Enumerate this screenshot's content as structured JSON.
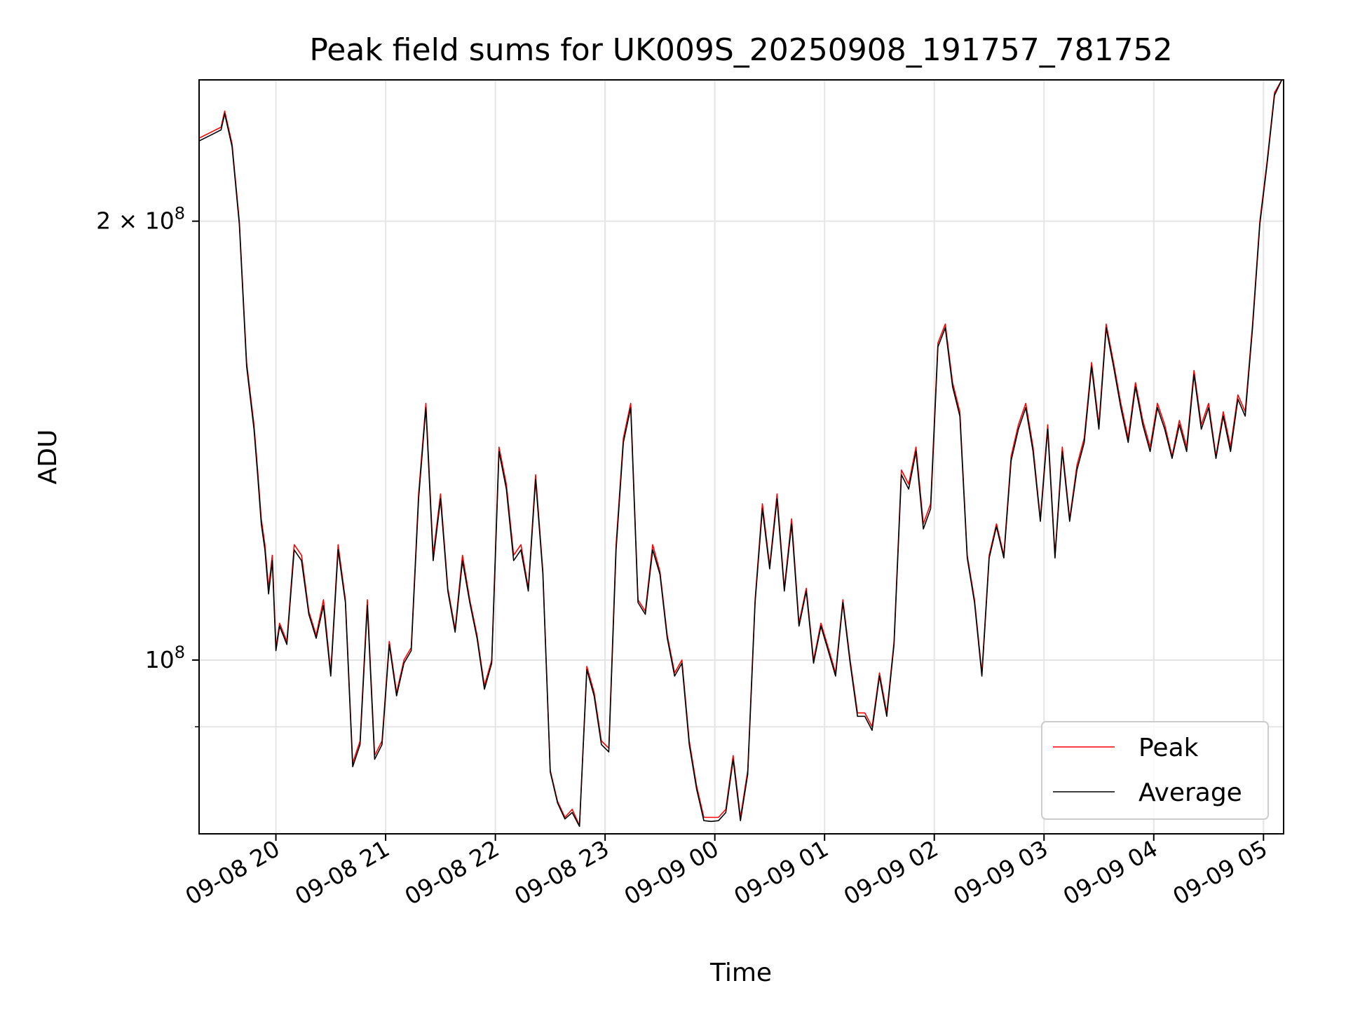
{
  "chart_data": {
    "type": "line",
    "title": "Peak field sums for UK009S_20250908_191757_781752",
    "xlabel": "Time",
    "ylabel": "ADU",
    "y_scale": "log",
    "ylim": [
      76000000,
      250000000
    ],
    "xlim": [
      "2025-09-08 19:18",
      "2025-09-09 05:11"
    ],
    "grid": true,
    "legend_position": "lower right",
    "x_ticks": [
      {
        "x": "2025-09-08 20:00",
        "label": "09-08 20"
      },
      {
        "x": "2025-09-08 21:00",
        "label": "09-08 21"
      },
      {
        "x": "2025-09-08 22:00",
        "label": "09-08 22"
      },
      {
        "x": "2025-09-08 23:00",
        "label": "09-08 23"
      },
      {
        "x": "2025-09-09 00:00",
        "label": "09-09 00"
      },
      {
        "x": "2025-09-09 01:00",
        "label": "09-09 01"
      },
      {
        "x": "2025-09-09 02:00",
        "label": "09-09 02"
      },
      {
        "x": "2025-09-09 03:00",
        "label": "09-09 03"
      },
      {
        "x": "2025-09-09 04:00",
        "label": "09-09 04"
      },
      {
        "x": "2025-09-09 05:00",
        "label": "09-09 05"
      }
    ],
    "y_ticks": [
      {
        "value": 100000000,
        "label_base": "10",
        "label_exp": "8",
        "major": true
      },
      {
        "value": 200000000,
        "label_base": "2 × 10",
        "label_exp": "8",
        "major": true
      },
      {
        "value": 90000000,
        "major": false
      }
    ],
    "series": [
      {
        "name": "Peak",
        "color": "#ff0000",
        "x": [
          "2025-09-08 19:18",
          "2025-09-08 19:24",
          "2025-09-08 19:30",
          "2025-09-08 19:32",
          "2025-09-08 19:34",
          "2025-09-08 19:36",
          "2025-09-08 19:40",
          "2025-09-08 19:44",
          "2025-09-08 19:48",
          "2025-09-08 19:50",
          "2025-09-08 19:52",
          "2025-09-08 19:54",
          "2025-09-08 19:56",
          "2025-09-08 19:58",
          "2025-09-08 20:00",
          "2025-09-08 20:02",
          "2025-09-08 20:06",
          "2025-09-08 20:10",
          "2025-09-08 20:14",
          "2025-09-08 20:18",
          "2025-09-08 20:22",
          "2025-09-08 20:26",
          "2025-09-08 20:30",
          "2025-09-08 20:34",
          "2025-09-08 20:38",
          "2025-09-08 20:42",
          "2025-09-08 20:46",
          "2025-09-08 20:50",
          "2025-09-08 20:54",
          "2025-09-08 20:58",
          "2025-09-08 21:02",
          "2025-09-08 21:06",
          "2025-09-08 21:10",
          "2025-09-08 21:14",
          "2025-09-08 21:18",
          "2025-09-08 21:22",
          "2025-09-08 21:26",
          "2025-09-08 21:30",
          "2025-09-08 21:34",
          "2025-09-08 21:38",
          "2025-09-08 21:42",
          "2025-09-08 21:46",
          "2025-09-08 21:50",
          "2025-09-08 21:54",
          "2025-09-08 21:58",
          "2025-09-08 22:02",
          "2025-09-08 22:06",
          "2025-09-08 22:10",
          "2025-09-08 22:14",
          "2025-09-08 22:18",
          "2025-09-08 22:22",
          "2025-09-08 22:26",
          "2025-09-08 22:30",
          "2025-09-08 22:34",
          "2025-09-08 22:38",
          "2025-09-08 22:42",
          "2025-09-08 22:46",
          "2025-09-08 22:50",
          "2025-09-08 22:54",
          "2025-09-08 22:58",
          "2025-09-08 23:02",
          "2025-09-08 23:06",
          "2025-09-08 23:10",
          "2025-09-08 23:14",
          "2025-09-08 23:18",
          "2025-09-08 23:22",
          "2025-09-08 23:26",
          "2025-09-08 23:30",
          "2025-09-08 23:34",
          "2025-09-08 23:38",
          "2025-09-08 23:42",
          "2025-09-08 23:46",
          "2025-09-08 23:50",
          "2025-09-08 23:54",
          "2025-09-08 23:58",
          "2025-09-09 00:02",
          "2025-09-09 00:06",
          "2025-09-09 00:10",
          "2025-09-09 00:14",
          "2025-09-09 00:18",
          "2025-09-09 00:22",
          "2025-09-09 00:26",
          "2025-09-09 00:30",
          "2025-09-09 00:34",
          "2025-09-09 00:38",
          "2025-09-09 00:42",
          "2025-09-09 00:46",
          "2025-09-09 00:50",
          "2025-09-09 00:54",
          "2025-09-09 00:58",
          "2025-09-09 01:02",
          "2025-09-09 01:06",
          "2025-09-09 01:10",
          "2025-09-09 01:14",
          "2025-09-09 01:18",
          "2025-09-09 01:22",
          "2025-09-09 01:26",
          "2025-09-09 01:30",
          "2025-09-09 01:34",
          "2025-09-09 01:38",
          "2025-09-09 01:42",
          "2025-09-09 01:46",
          "2025-09-09 01:50",
          "2025-09-09 01:54",
          "2025-09-09 01:58",
          "2025-09-09 02:02",
          "2025-09-09 02:06",
          "2025-09-09 02:10",
          "2025-09-09 02:14",
          "2025-09-09 02:18",
          "2025-09-09 02:22",
          "2025-09-09 02:26",
          "2025-09-09 02:30",
          "2025-09-09 02:34",
          "2025-09-09 02:38",
          "2025-09-09 02:42",
          "2025-09-09 02:46",
          "2025-09-09 02:50",
          "2025-09-09 02:54",
          "2025-09-09 02:58",
          "2025-09-09 03:02",
          "2025-09-09 03:06",
          "2025-09-09 03:10",
          "2025-09-09 03:14",
          "2025-09-09 03:18",
          "2025-09-09 03:22",
          "2025-09-09 03:26",
          "2025-09-09 03:30",
          "2025-09-09 03:34",
          "2025-09-09 03:38",
          "2025-09-09 03:42",
          "2025-09-09 03:46",
          "2025-09-09 03:50",
          "2025-09-09 03:54",
          "2025-09-09 03:58",
          "2025-09-09 04:02",
          "2025-09-09 04:06",
          "2025-09-09 04:10",
          "2025-09-09 04:14",
          "2025-09-09 04:18",
          "2025-09-09 04:22",
          "2025-09-09 04:26",
          "2025-09-09 04:30",
          "2025-09-09 04:34",
          "2025-09-09 04:38",
          "2025-09-09 04:42",
          "2025-09-09 04:46",
          "2025-09-09 04:50",
          "2025-09-09 04:54",
          "2025-09-09 04:58",
          "2025-09-09 05:02",
          "2025-09-09 05:06",
          "2025-09-09 05:10"
        ],
        "values": [
          228000000,
          230000000,
          232000000,
          238000000,
          232000000,
          226000000,
          200000000,
          160000000,
          145000000,
          135000000,
          125000000,
          120000000,
          112000000,
          118000000,
          102000000,
          106000000,
          103000000,
          120000000,
          118000000,
          108000000,
          104000000,
          110000000,
          98000000,
          120000000,
          110000000,
          85000000,
          88000000,
          110000000,
          86000000,
          88000000,
          103000000,
          95000000,
          100000000,
          102000000,
          130000000,
          150000000,
          118000000,
          130000000,
          112000000,
          105000000,
          118000000,
          110000000,
          104000000,
          96000000,
          100000000,
          140000000,
          132000000,
          118000000,
          120000000,
          112000000,
          134000000,
          115000000,
          84000000,
          80000000,
          78000000,
          79000000,
          77000000,
          99000000,
          95000000,
          88000000,
          87000000,
          120000000,
          142000000,
          150000000,
          110000000,
          108000000,
          120000000,
          115000000,
          104000000,
          98000000,
          100000000,
          88000000,
          82000000,
          78000000,
          78000000,
          78000000,
          79000000,
          86000000,
          78000000,
          84000000,
          110000000,
          128000000,
          116000000,
          130000000,
          112000000,
          125000000,
          106000000,
          112000000,
          100000000,
          106000000,
          102000000,
          98000000,
          110000000,
          100000000,
          92000000,
          92000000,
          90000000,
          98000000,
          92000000,
          103000000,
          135000000,
          132000000,
          140000000,
          124000000,
          128000000,
          165000000,
          170000000,
          155000000,
          148000000,
          118000000,
          110000000,
          98000000,
          118000000,
          124000000,
          118000000,
          138000000,
          145000000,
          150000000,
          140000000,
          125000000,
          145000000,
          118000000,
          140000000,
          125000000,
          136000000,
          142000000,
          160000000,
          145000000,
          170000000,
          160000000,
          150000000,
          142000000,
          155000000,
          146000000,
          140000000,
          150000000,
          145000000,
          138000000,
          146000000,
          140000000,
          158000000,
          145000000,
          150000000,
          138000000,
          148000000,
          140000000,
          152000000,
          148000000,
          170000000,
          200000000,
          220000000,
          245000000,
          250000000
        ]
      },
      {
        "name": "Average",
        "color": "#000000",
        "x": [
          "2025-09-08 19:18",
          "2025-09-08 19:24",
          "2025-09-08 19:30",
          "2025-09-08 19:32",
          "2025-09-08 19:34",
          "2025-09-08 19:36",
          "2025-09-08 19:40",
          "2025-09-08 19:44",
          "2025-09-08 19:48",
          "2025-09-08 19:50",
          "2025-09-08 19:52",
          "2025-09-08 19:54",
          "2025-09-08 19:56",
          "2025-09-08 19:58",
          "2025-09-08 20:00",
          "2025-09-08 20:02",
          "2025-09-08 20:06",
          "2025-09-08 20:10",
          "2025-09-08 20:14",
          "2025-09-08 20:18",
          "2025-09-08 20:22",
          "2025-09-08 20:26",
          "2025-09-08 20:30",
          "2025-09-08 20:34",
          "2025-09-08 20:38",
          "2025-09-08 20:42",
          "2025-09-08 20:46",
          "2025-09-08 20:50",
          "2025-09-08 20:54",
          "2025-09-08 20:58",
          "2025-09-08 21:02",
          "2025-09-08 21:06",
          "2025-09-08 21:10",
          "2025-09-08 21:14",
          "2025-09-08 21:18",
          "2025-09-08 21:22",
          "2025-09-08 21:26",
          "2025-09-08 21:30",
          "2025-09-08 21:34",
          "2025-09-08 21:38",
          "2025-09-08 21:42",
          "2025-09-08 21:46",
          "2025-09-08 21:50",
          "2025-09-08 21:54",
          "2025-09-08 21:58",
          "2025-09-08 22:02",
          "2025-09-08 22:06",
          "2025-09-08 22:10",
          "2025-09-08 22:14",
          "2025-09-08 22:18",
          "2025-09-08 22:22",
          "2025-09-08 22:26",
          "2025-09-08 22:30",
          "2025-09-08 22:34",
          "2025-09-08 22:38",
          "2025-09-08 22:42",
          "2025-09-08 22:46",
          "2025-09-08 22:50",
          "2025-09-08 22:54",
          "2025-09-08 22:58",
          "2025-09-08 23:02",
          "2025-09-08 23:06",
          "2025-09-08 23:10",
          "2025-09-08 23:14",
          "2025-09-08 23:18",
          "2025-09-08 23:22",
          "2025-09-08 23:26",
          "2025-09-08 23:30",
          "2025-09-08 23:34",
          "2025-09-08 23:38",
          "2025-09-08 23:42",
          "2025-09-08 23:46",
          "2025-09-08 23:50",
          "2025-09-08 23:54",
          "2025-09-08 23:58",
          "2025-09-09 00:02",
          "2025-09-09 00:06",
          "2025-09-09 00:10",
          "2025-09-09 00:14",
          "2025-09-09 00:18",
          "2025-09-09 00:22",
          "2025-09-09 00:26",
          "2025-09-09 00:30",
          "2025-09-09 00:34",
          "2025-09-09 00:38",
          "2025-09-09 00:42",
          "2025-09-09 00:46",
          "2025-09-09 00:50",
          "2025-09-09 00:54",
          "2025-09-09 00:58",
          "2025-09-09 01:02",
          "2025-09-09 01:06",
          "2025-09-09 01:10",
          "2025-09-09 01:14",
          "2025-09-09 01:18",
          "2025-09-09 01:22",
          "2025-09-09 01:26",
          "2025-09-09 01:30",
          "2025-09-09 01:34",
          "2025-09-09 01:38",
          "2025-09-09 01:42",
          "2025-09-09 01:46",
          "2025-09-09 01:50",
          "2025-09-09 01:54",
          "2025-09-09 01:58",
          "2025-09-09 02:02",
          "2025-09-09 02:06",
          "2025-09-09 02:10",
          "2025-09-09 02:14",
          "2025-09-09 02:18",
          "2025-09-09 02:22",
          "2025-09-09 02:26",
          "2025-09-09 02:30",
          "2025-09-09 02:34",
          "2025-09-09 02:38",
          "2025-09-09 02:42",
          "2025-09-09 02:46",
          "2025-09-09 02:50",
          "2025-09-09 02:54",
          "2025-09-09 02:58",
          "2025-09-09 03:02",
          "2025-09-09 03:06",
          "2025-09-09 03:10",
          "2025-09-09 03:14",
          "2025-09-09 03:18",
          "2025-09-09 03:22",
          "2025-09-09 03:26",
          "2025-09-09 03:30",
          "2025-09-09 03:34",
          "2025-09-09 03:38",
          "2025-09-09 03:42",
          "2025-09-09 03:46",
          "2025-09-09 03:50",
          "2025-09-09 03:54",
          "2025-09-09 03:58",
          "2025-09-09 04:02",
          "2025-09-09 04:06",
          "2025-09-09 04:10",
          "2025-09-09 04:14",
          "2025-09-09 04:18",
          "2025-09-09 04:22",
          "2025-09-09 04:26",
          "2025-09-09 04:30",
          "2025-09-09 04:34",
          "2025-09-09 04:38",
          "2025-09-09 04:42",
          "2025-09-09 04:46",
          "2025-09-09 04:50",
          "2025-09-09 04:54",
          "2025-09-09 04:58",
          "2025-09-09 05:02",
          "2025-09-09 05:06",
          "2025-09-09 05:10"
        ],
        "values": [
          227000000,
          229000000,
          231000000,
          237000000,
          231000000,
          225000000,
          199000000,
          159000000,
          144000000,
          134000000,
          124000000,
          119000000,
          111000000,
          117000000,
          101500000,
          105500000,
          102500000,
          119000000,
          117000000,
          107500000,
          103500000,
          109000000,
          97500000,
          119000000,
          109500000,
          84500000,
          87500000,
          109000000,
          85500000,
          87500000,
          102500000,
          94500000,
          99500000,
          101500000,
          129000000,
          149000000,
          117000000,
          129000000,
          111500000,
          104500000,
          117000000,
          109500000,
          103500000,
          95500000,
          99500000,
          139000000,
          131000000,
          117000000,
          119000000,
          111500000,
          133000000,
          114500000,
          83800000,
          79800000,
          77800000,
          78600000,
          76900000,
          98500000,
          94500000,
          87500000,
          86500000,
          119000000,
          141000000,
          149000000,
          109500000,
          107500000,
          119000000,
          114500000,
          103500000,
          97500000,
          99500000,
          87500000,
          81600000,
          77600000,
          77500000,
          77600000,
          78600000,
          85500000,
          77600000,
          83500000,
          109500000,
          127000000,
          115500000,
          129000000,
          111500000,
          124000000,
          105500000,
          111500000,
          99500000,
          105500000,
          101500000,
          97500000,
          109500000,
          99500000,
          91500000,
          91500000,
          89500000,
          97500000,
          91500000,
          102500000,
          134000000,
          131000000,
          139000000,
          123000000,
          127000000,
          164000000,
          169000000,
          154000000,
          147000000,
          117500000,
          109500000,
          97500000,
          117500000,
          123500000,
          117500000,
          137000000,
          144000000,
          149000000,
          139000000,
          124500000,
          144000000,
          117500000,
          139000000,
          124500000,
          135000000,
          141000000,
          159000000,
          144000000,
          169000000,
          159000000,
          149000000,
          141000000,
          154000000,
          145000000,
          139000000,
          149000000,
          144000000,
          137500000,
          145000000,
          139000000,
          157000000,
          144000000,
          149000000,
          137500000,
          147000000,
          139000000,
          151000000,
          147000000,
          169000000,
          199000000,
          219000000,
          244000000,
          250000000
        ]
      }
    ]
  }
}
